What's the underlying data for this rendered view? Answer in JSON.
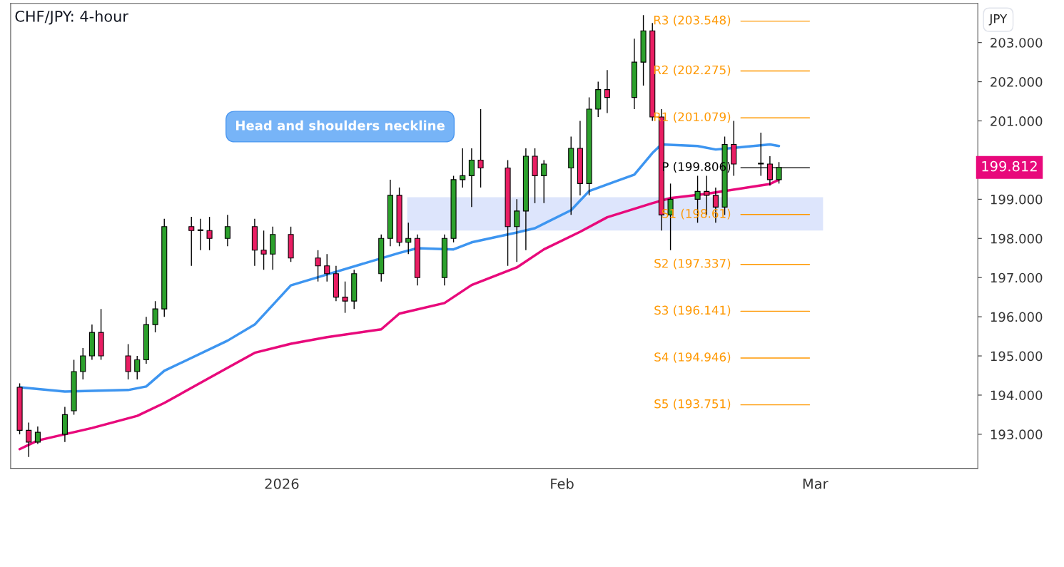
{
  "chart_data": {
    "type": "candlestick",
    "title": "CHF/JPY: 4-hour",
    "ylabel": "JPY",
    "x": [
      "2025-12-03",
      "2025-12-04",
      "2025-12-05",
      "2025-12-08",
      "2025-12-09",
      "2025-12-10",
      "2025-12-11",
      "2025-12-12",
      "2025-12-15",
      "2025-12-16",
      "2025-12-17",
      "2025-12-18",
      "2025-12-19",
      "2025-12-22",
      "2025-12-23",
      "2025-12-24",
      "2025-12-26",
      "2025-12-29",
      "2025-12-30",
      "2025-12-31",
      "2026-01-02",
      "2026-01-05",
      "2026-01-06",
      "2026-01-07",
      "2026-01-08",
      "2026-01-09",
      "2026-01-12",
      "2026-01-13",
      "2026-01-14",
      "2026-01-15",
      "2026-01-16",
      "2026-01-19",
      "2026-01-20",
      "2026-01-21",
      "2026-01-22",
      "2026-01-23",
      "2026-01-26",
      "2026-01-27",
      "2026-01-28",
      "2026-01-29",
      "2026-01-30",
      "2026-02-02",
      "2026-02-03",
      "2026-02-04",
      "2026-02-05",
      "2026-02-06",
      "2026-02-09",
      "2026-02-10",
      "2026-02-11",
      "2026-02-12",
      "2026-02-13",
      "2026-02-16",
      "2026-02-17",
      "2026-02-18",
      "2026-02-19",
      "2026-02-20",
      "2026-02-23",
      "2026-02-24",
      "2026-02-25"
    ],
    "ohlc": [
      [
        194.2,
        194.3,
        193.0,
        193.1
      ],
      [
        193.1,
        193.3,
        192.42,
        192.8
      ],
      [
        192.8,
        193.2,
        192.75,
        193.05
      ],
      [
        193.0,
        193.7,
        192.8,
        193.5
      ],
      [
        193.6,
        194.9,
        193.5,
        194.6
      ],
      [
        194.6,
        195.2,
        194.4,
        195.0
      ],
      [
        195.0,
        195.8,
        194.9,
        195.6
      ],
      [
        195.6,
        196.2,
        194.9,
        195.0
      ],
      [
        195.0,
        195.3,
        194.4,
        194.6
      ],
      [
        194.6,
        195.0,
        194.4,
        194.9
      ],
      [
        194.9,
        196.0,
        194.8,
        195.8
      ],
      [
        195.8,
        196.4,
        195.6,
        196.2
      ],
      [
        196.2,
        198.5,
        196.0,
        198.3
      ],
      [
        198.3,
        198.55,
        197.3,
        198.2
      ],
      [
        198.2,
        198.5,
        197.7,
        198.2
      ],
      [
        198.2,
        198.55,
        197.7,
        198.0
      ],
      [
        198.0,
        198.6,
        197.8,
        198.3
      ],
      [
        198.3,
        198.5,
        197.3,
        197.7
      ],
      [
        197.7,
        198.2,
        197.2,
        197.6
      ],
      [
        197.6,
        198.3,
        197.2,
        198.1
      ],
      [
        198.1,
        198.3,
        197.4,
        197.5
      ],
      [
        197.5,
        197.7,
        196.9,
        197.3
      ],
      [
        197.3,
        197.6,
        196.9,
        197.1
      ],
      [
        197.1,
        197.3,
        196.4,
        196.5
      ],
      [
        196.5,
        196.9,
        196.1,
        196.4
      ],
      [
        196.4,
        197.2,
        196.2,
        197.1
      ],
      [
        197.1,
        198.1,
        196.9,
        198.0
      ],
      [
        198.0,
        199.5,
        197.8,
        199.1
      ],
      [
        199.1,
        199.3,
        197.8,
        197.9
      ],
      [
        197.9,
        198.4,
        197.6,
        198.0
      ],
      [
        198.0,
        198.1,
        196.8,
        197.0
      ],
      [
        197.0,
        198.1,
        196.8,
        198.0
      ],
      [
        198.0,
        199.6,
        197.9,
        199.5
      ],
      [
        199.5,
        200.3,
        199.3,
        199.6
      ],
      [
        199.6,
        200.3,
        198.8,
        200.0
      ],
      [
        200.0,
        201.3,
        199.3,
        199.8
      ],
      [
        199.8,
        200.0,
        197.3,
        198.3
      ],
      [
        198.3,
        199.0,
        197.4,
        198.7
      ],
      [
        198.7,
        200.3,
        197.7,
        200.1
      ],
      [
        200.1,
        200.3,
        198.9,
        199.6
      ],
      [
        199.6,
        200.0,
        198.9,
        199.9
      ],
      [
        199.8,
        200.6,
        198.6,
        200.3
      ],
      [
        200.3,
        201.0,
        199.1,
        199.4
      ],
      [
        199.4,
        201.6,
        199.1,
        201.3
      ],
      [
        201.3,
        202.0,
        201.1,
        201.8
      ],
      [
        201.8,
        202.3,
        201.2,
        201.6
      ],
      [
        201.6,
        203.1,
        201.3,
        202.5
      ],
      [
        202.5,
        203.7,
        201.9,
        203.3
      ],
      [
        203.3,
        203.5,
        201.0,
        201.1
      ],
      [
        201.1,
        201.3,
        198.2,
        198.6
      ],
      [
        198.6,
        199.4,
        197.7,
        199.0
      ],
      [
        199.0,
        199.6,
        198.4,
        199.2
      ],
      [
        199.2,
        199.6,
        198.6,
        199.1
      ],
      [
        199.1,
        199.3,
        198.4,
        198.8
      ],
      [
        198.8,
        200.6,
        198.6,
        200.4
      ],
      [
        200.4,
        201.0,
        199.6,
        199.9
      ],
      [
        199.9,
        200.7,
        199.6,
        199.9
      ],
      [
        199.9,
        200.1,
        199.35,
        199.5
      ],
      [
        199.5,
        199.95,
        199.4,
        199.812
      ]
    ],
    "series": [
      {
        "type": "line",
        "color": "#3d95f0",
        "x": [
          "2025-12-03",
          "2025-12-08",
          "2025-12-11",
          "2025-12-15",
          "2025-12-17",
          "2025-12-19",
          "2025-12-26",
          "2025-12-29",
          "2026-01-02",
          "2026-01-06",
          "2026-01-14",
          "2026-01-16",
          "2026-01-20",
          "2026-01-22",
          "2026-01-27",
          "2026-01-29",
          "2026-02-02",
          "2026-02-04",
          "2026-02-09",
          "2026-02-11",
          "2026-02-12",
          "2026-02-16",
          "2026-02-18",
          "2026-02-24",
          "2026-02-25"
        ],
        "values": [
          194.2,
          194.09,
          194.11,
          194.13,
          194.22,
          194.62,
          195.39,
          195.8,
          196.8,
          197.08,
          197.63,
          197.75,
          197.72,
          197.9,
          198.15,
          198.26,
          198.72,
          199.21,
          199.63,
          200.18,
          200.4,
          200.36,
          200.27,
          200.4,
          200.36
        ]
      },
      {
        "type": "line",
        "color": "#e8097b",
        "x": [
          "2025-12-03",
          "2025-12-05",
          "2025-12-11",
          "2025-12-16",
          "2025-12-19",
          "2025-12-24",
          "2025-12-29",
          "2026-01-02",
          "2026-01-06",
          "2026-01-12",
          "2026-01-14",
          "2026-01-19",
          "2026-01-22",
          "2026-01-27",
          "2026-01-30",
          "2026-02-03",
          "2026-02-06",
          "2026-02-11",
          "2026-02-13",
          "2026-02-17",
          "2026-02-24",
          "2026-02-25"
        ],
        "values": [
          192.62,
          192.84,
          193.16,
          193.47,
          193.8,
          194.44,
          195.08,
          195.31,
          195.48,
          195.68,
          196.08,
          196.35,
          196.81,
          197.26,
          197.72,
          198.17,
          198.54,
          198.9,
          199.03,
          199.14,
          199.39,
          199.5
        ]
      }
    ],
    "xlim": [
      "2025-12-02",
      "2026-03-19"
    ],
    "xticks": [
      {
        "value": "2026-01-01",
        "label": "2026"
      },
      {
        "value": "2026-02-01",
        "label": "Feb"
      },
      {
        "value": "2026-03-01",
        "label": "Mar"
      }
    ],
    "ylim": [
      192.13,
      204.0
    ],
    "yticks": [
      {
        "value": 193,
        "label": "193.000"
      },
      {
        "value": 194,
        "label": "194.000"
      },
      {
        "value": 195,
        "label": "195.000"
      },
      {
        "value": 196,
        "label": "196.000"
      },
      {
        "value": 197,
        "label": "197.000"
      },
      {
        "value": 198,
        "label": "198.000"
      },
      {
        "value": 199,
        "label": "199.000"
      },
      {
        "value": 200,
        "label": null
      },
      {
        "value": 201,
        "label": "201.000"
      },
      {
        "value": 202,
        "label": "202.000"
      },
      {
        "value": 203,
        "label": "203.000"
      }
    ],
    "ref_lines": [
      {
        "axis": "y",
        "value": 203.548,
        "label": "R3 (203.548)",
        "color": "#ff9800"
      },
      {
        "axis": "y",
        "value": 202.275,
        "label": "R2 (202.275)",
        "color": "#ff9800"
      },
      {
        "axis": "y",
        "value": 201.079,
        "label": "R1 (201.079)",
        "color": "#ff9800"
      },
      {
        "axis": "y",
        "value": 199.806,
        "label": "P (199.806)",
        "color": "#000000"
      },
      {
        "axis": "y",
        "value": 198.61,
        "label": "S1 (198.61)",
        "color": "#ff9800"
      },
      {
        "axis": "y",
        "value": 197.337,
        "label": "S2 (197.337)",
        "color": "#ff9800"
      },
      {
        "axis": "y",
        "value": 196.141,
        "label": "S3 (196.141)",
        "color": "#ff9800"
      },
      {
        "axis": "y",
        "value": 194.946,
        "label": "S4 (194.946)",
        "color": "#ff9800"
      },
      {
        "axis": "y",
        "value": 193.751,
        "label": "S5 (193.751)",
        "color": "#ff9800"
      }
    ],
    "bands": [
      {
        "axis": "y",
        "from": 198.2,
        "to": 199.05,
        "color": "#dde5fc"
      }
    ],
    "annotations": [
      "Head and shoulders neckline",
      "199.812"
    ],
    "grid": false,
    "legend": false
  }
}
